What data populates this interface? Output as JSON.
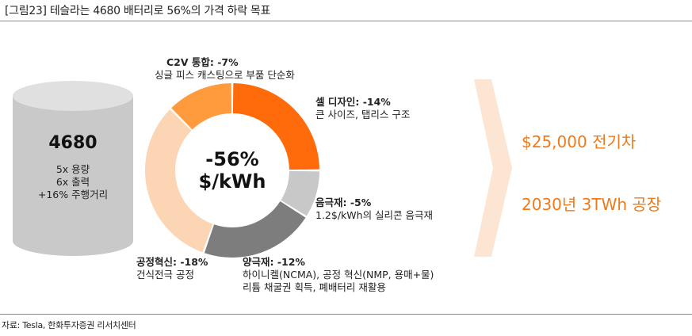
{
  "header": {
    "title": "[그림23]  테슬라는 4680 배터리로 56%의 가격 하락 목표"
  },
  "battery": {
    "name": "4680",
    "lines": [
      "5x 용량",
      "6x 출력",
      "+16% 주행거리"
    ]
  },
  "donut": {
    "center_line1": "-56%",
    "center_line2": "$/kWh",
    "segments": [
      {
        "key": "cell",
        "title": "셀 디자인: -14%",
        "desc": [
          "큰 사이즈, 탭리스 구조"
        ],
        "value": 14,
        "color": "#ff6b0a"
      },
      {
        "key": "anode",
        "title": "음극재: -5%",
        "desc": [
          "1.2$/kWh의 실리콘 음극재"
        ],
        "value": 5,
        "color": "#c8c8c8"
      },
      {
        "key": "cathode",
        "title": "양극재: -12%",
        "desc": [
          "하이니켈(NCMA), 공정 혁신(NMP, 용매+물)",
          "리튬 채굴권 획득, 폐배터리 재활용"
        ],
        "value": 12,
        "color": "#7d7d7d"
      },
      {
        "key": "process",
        "title": "공정혁신: -18%",
        "desc": [
          "건식전극 공정"
        ],
        "value": 18,
        "color": "#fcd5b5"
      },
      {
        "key": "c2v",
        "title": "C2V 통합: -7%",
        "desc": [
          "싱글 피스 캐스팅으로 부품 단순화"
        ],
        "value": 7,
        "color": "#ff9a3d"
      }
    ]
  },
  "results": [
    "$25,000 전기차",
    "2030년 3TWh 공장"
  ],
  "colors": {
    "accent": "#f07a1a",
    "arrow": "#fde5d3",
    "cylinder_body": "#c9c9c9",
    "cylinder_top": "#e0e0e0"
  },
  "footer": {
    "source": "자료: Tesla, 한화투자증권 리서치센터"
  }
}
